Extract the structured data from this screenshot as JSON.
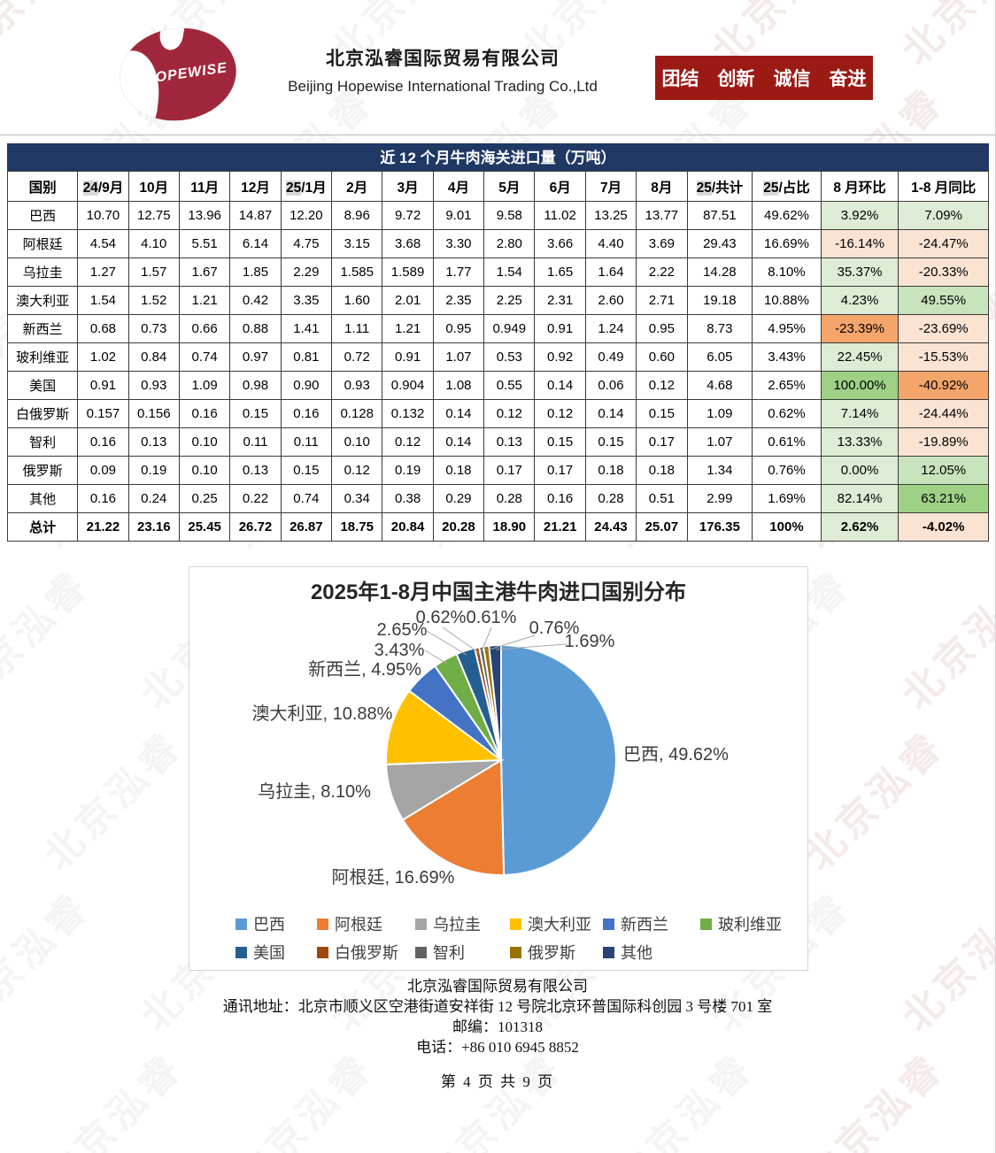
{
  "header": {
    "logo_text": "HOPEWISE",
    "company_cn": "北京泓睿国际贸易有限公司",
    "company_en": "Beijing Hopewise International Trading Co.,Ltd",
    "slogan": "团结　创新　诚信　奋进",
    "banner_color": "#9B1B14",
    "logo_color": "#A1283C"
  },
  "watermark_text": "北京泓睿",
  "table": {
    "title": "近 12 个月牛肉海关进口量（万吨）",
    "header_bg": "#1F3864",
    "columns": [
      {
        "hl": "",
        "rest": "国别"
      },
      {
        "hl": "24",
        "rest": "/9月"
      },
      {
        "hl": "",
        "rest": "10月"
      },
      {
        "hl": "",
        "rest": "11月"
      },
      {
        "hl": "",
        "rest": "12月"
      },
      {
        "hl": "25",
        "rest": "/1月"
      },
      {
        "hl": "",
        "rest": "2月"
      },
      {
        "hl": "",
        "rest": "3月"
      },
      {
        "hl": "",
        "rest": "4月"
      },
      {
        "hl": "",
        "rest": "5月"
      },
      {
        "hl": "",
        "rest": "6月"
      },
      {
        "hl": "",
        "rest": "7月"
      },
      {
        "hl": "",
        "rest": "8月"
      },
      {
        "hl": "25",
        "rest": "/共计"
      },
      {
        "hl": "25",
        "rest": "/占比"
      },
      {
        "hl": "",
        "rest": "8 月环比"
      },
      {
        "hl": "",
        "rest": "1-8 月同比"
      }
    ],
    "rows": [
      {
        "name": "巴西",
        "months": [
          "10.70",
          "12.75",
          "13.96",
          "14.87",
          "12.20",
          "8.96",
          "9.72",
          "9.01",
          "9.58",
          "11.02",
          "13.25",
          "13.77"
        ],
        "total": "87.51",
        "share": "49.62%",
        "mom": {
          "v": "3.92%",
          "tone": "g1"
        },
        "yoy": {
          "v": "7.09%",
          "tone": "g1"
        },
        "bold": false
      },
      {
        "name": "阿根廷",
        "months": [
          "4.54",
          "4.10",
          "5.51",
          "6.14",
          "4.75",
          "3.15",
          "3.68",
          "3.30",
          "2.80",
          "3.66",
          "4.40",
          "3.69"
        ],
        "total": "29.43",
        "share": "16.69%",
        "mom": {
          "v": "-16.14%",
          "tone": "o1"
        },
        "yoy": {
          "v": "-24.47%",
          "tone": "o1"
        },
        "bold": false
      },
      {
        "name": "乌拉圭",
        "months": [
          "1.27",
          "1.57",
          "1.67",
          "1.85",
          "2.29",
          "1.585",
          "1.589",
          "1.77",
          "1.54",
          "1.65",
          "1.64",
          "2.22"
        ],
        "total": "14.28",
        "share": "8.10%",
        "mom": {
          "v": "35.37%",
          "tone": "g1"
        },
        "yoy": {
          "v": "-20.33%",
          "tone": "o1"
        },
        "bold": false
      },
      {
        "name": "澳大利亚",
        "months": [
          "1.54",
          "1.52",
          "1.21",
          "0.42",
          "3.35",
          "1.60",
          "2.01",
          "2.35",
          "2.25",
          "2.31",
          "2.60",
          "2.71"
        ],
        "total": "19.18",
        "share": "10.88%",
        "mom": {
          "v": "4.23%",
          "tone": "g1"
        },
        "yoy": {
          "v": "49.55%",
          "tone": "g2"
        },
        "bold": false
      },
      {
        "name": "新西兰",
        "months": [
          "0.68",
          "0.73",
          "0.66",
          "0.88",
          "1.41",
          "1.11",
          "1.21",
          "0.95",
          "0.949",
          "0.91",
          "1.24",
          "0.95"
        ],
        "total": "8.73",
        "share": "4.95%",
        "mom": {
          "v": "-23.39%",
          "tone": "o2"
        },
        "yoy": {
          "v": "-23.69%",
          "tone": "o1"
        },
        "bold": false
      },
      {
        "name": "玻利维亚",
        "months": [
          "1.02",
          "0.84",
          "0.74",
          "0.97",
          "0.81",
          "0.72",
          "0.91",
          "1.07",
          "0.53",
          "0.92",
          "0.49",
          "0.60"
        ],
        "total": "6.05",
        "share": "3.43%",
        "mom": {
          "v": "22.45%",
          "tone": "g1"
        },
        "yoy": {
          "v": "-15.53%",
          "tone": "o1"
        },
        "bold": false
      },
      {
        "name": "美国",
        "months": [
          "0.91",
          "0.93",
          "1.09",
          "0.98",
          "0.90",
          "0.93",
          "0.904",
          "1.08",
          "0.55",
          "0.14",
          "0.06",
          "0.12"
        ],
        "total": "4.68",
        "share": "2.65%",
        "mom": {
          "v": "100.00%",
          "tone": "g3"
        },
        "yoy": {
          "v": "-40.92%",
          "tone": "o2"
        },
        "bold": false
      },
      {
        "name": "白俄罗斯",
        "months": [
          "0.157",
          "0.156",
          "0.16",
          "0.15",
          "0.16",
          "0.128",
          "0.132",
          "0.14",
          "0.12",
          "0.12",
          "0.14",
          "0.15"
        ],
        "total": "1.09",
        "share": "0.62%",
        "mom": {
          "v": "7.14%",
          "tone": "g1"
        },
        "yoy": {
          "v": "-24.44%",
          "tone": "o1"
        },
        "bold": false
      },
      {
        "name": "智利",
        "months": [
          "0.16",
          "0.13",
          "0.10",
          "0.11",
          "0.11",
          "0.10",
          "0.12",
          "0.14",
          "0.13",
          "0.15",
          "0.15",
          "0.17"
        ],
        "total": "1.07",
        "share": "0.61%",
        "mom": {
          "v": "13.33%",
          "tone": "g1"
        },
        "yoy": {
          "v": "-19.89%",
          "tone": "o1"
        },
        "bold": false
      },
      {
        "name": "俄罗斯",
        "months": [
          "0.09",
          "0.19",
          "0.10",
          "0.13",
          "0.15",
          "0.12",
          "0.19",
          "0.18",
          "0.17",
          "0.17",
          "0.18",
          "0.18"
        ],
        "total": "1.34",
        "share": "0.76%",
        "mom": {
          "v": "0.00%",
          "tone": "g1"
        },
        "yoy": {
          "v": "12.05%",
          "tone": "g2"
        },
        "bold": false
      },
      {
        "name": "其他",
        "months": [
          "0.16",
          "0.24",
          "0.25",
          "0.22",
          "0.74",
          "0.34",
          "0.38",
          "0.29",
          "0.28",
          "0.16",
          "0.28",
          "0.51"
        ],
        "total": "2.99",
        "share": "1.69%",
        "mom": {
          "v": "82.14%",
          "tone": "g1"
        },
        "yoy": {
          "v": "63.21%",
          "tone": "g3"
        },
        "bold": false
      },
      {
        "name": "总计",
        "months": [
          "21.22",
          "23.16",
          "25.45",
          "26.72",
          "26.87",
          "18.75",
          "20.84",
          "20.28",
          "18.90",
          "21.21",
          "24.43",
          "25.07"
        ],
        "total": "176.35",
        "share": "100%",
        "mom": {
          "v": "2.62%",
          "tone": "g1"
        },
        "yoy": {
          "v": "-4.02%",
          "tone": "o1"
        },
        "bold": true
      }
    ]
  },
  "chart_data": {
    "type": "pie",
    "title": "2025年1-8月中国主港牛肉进口国别分布",
    "legend_position": "bottom",
    "series": [
      {
        "name": "巴西",
        "value": 49.62,
        "label": "巴西, 49.62%",
        "color": "#5B9BD5"
      },
      {
        "name": "阿根廷",
        "value": 16.69,
        "label": "阿根廷, 16.69%",
        "color": "#ED7D31"
      },
      {
        "name": "乌拉圭",
        "value": 8.1,
        "label": "乌拉圭, 8.10%",
        "color": "#A5A5A5"
      },
      {
        "name": "澳大利亚",
        "value": 10.88,
        "label": "澳大利亚, 10.88%",
        "color": "#FFC000"
      },
      {
        "name": "新西兰",
        "value": 4.95,
        "label": "新西兰, 4.95%",
        "color": "#4472C4"
      },
      {
        "name": "玻利维亚",
        "value": 3.43,
        "label": "3.43%",
        "color": "#70AD47"
      },
      {
        "name": "美国",
        "value": 2.65,
        "label": "2.65%",
        "color": "#255E91"
      },
      {
        "name": "白俄罗斯",
        "value": 0.62,
        "label": "0.62%",
        "color": "#9E480E"
      },
      {
        "name": "智利",
        "value": 0.61,
        "label": "0.61%",
        "color": "#636363"
      },
      {
        "name": "俄罗斯",
        "value": 0.76,
        "label": "0.76%",
        "color": "#997300"
      },
      {
        "name": "其他",
        "value": 1.69,
        "label": "1.69%",
        "color": "#264478"
      }
    ]
  },
  "footer": {
    "company": "北京泓睿国际贸易有限公司",
    "address": "通讯地址：北京市顺义区空港街道安祥街 12 号院北京环普国际科创园 3 号楼 701 室",
    "postal": "邮编：101318",
    "phone": "电话：+86 010 6945 8852",
    "page": "第 4 页 共 9 页"
  }
}
